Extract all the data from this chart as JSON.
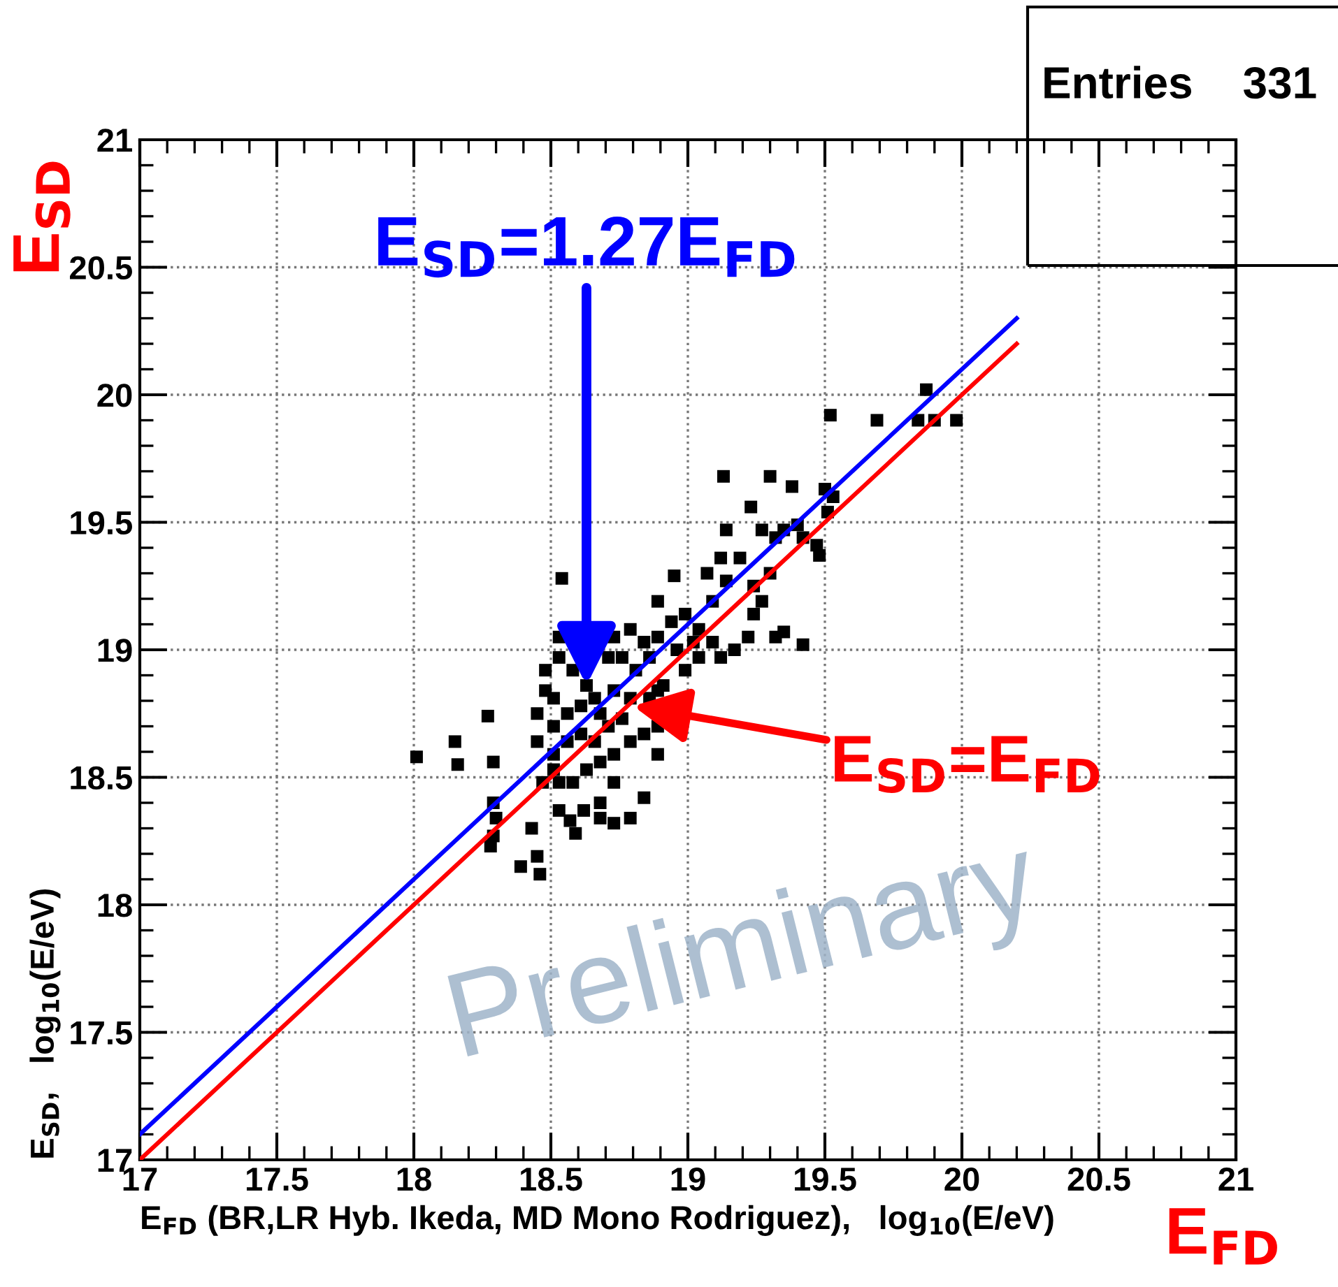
{
  "chart_data": {
    "type": "scatter",
    "xlabel": "E$_{FD}$ (BR,LR Hyb. Ikeda, MD Mono Rodriguez),   log$_{10}$(E/eV)",
    "ylabel": "E$_{SD}$,   log$_{10}$(E/eV)",
    "xlim": [
      17,
      21
    ],
    "ylim": [
      17,
      21
    ],
    "xticks": [
      17,
      17.5,
      18,
      18.5,
      19,
      19.5,
      20,
      20.5,
      21
    ],
    "yticks": [
      17,
      17.5,
      18,
      18.5,
      19,
      19.5,
      20,
      20.5,
      21
    ],
    "grid": true,
    "legend": false,
    "series": [
      {
        "color": "#000000",
        "marker": "square",
        "x": [
          18.01,
          18.15,
          18.16,
          18.27,
          18.29,
          18.29,
          18.29,
          18.3,
          18.28,
          18.54,
          18.46,
          18.39,
          18.43,
          18.45,
          18.57,
          18.59,
          18.53,
          18.47,
          18.68,
          18.68,
          18.73,
          18.79,
          18.84,
          18.89,
          18.84,
          18.89,
          18.89,
          18.86,
          18.89,
          18.94,
          18.99,
          19.04,
          19.09,
          19.14,
          19.19,
          19.24,
          19.3,
          19.27,
          19.32,
          19.35,
          19.4,
          19.42,
          19.47,
          19.14,
          19.12,
          19.07,
          19.02,
          19.09,
          19.12,
          19.17,
          19.24,
          19.27,
          19.22,
          19.32,
          19.35,
          19.42,
          19.48,
          19.5,
          19.53,
          19.13,
          19.3,
          19.23,
          19.38,
          19.52,
          19.69,
          19.84,
          19.9,
          19.98,
          19.87,
          19.51,
          18.53,
          18.58,
          18.63,
          18.48,
          18.51,
          18.45,
          18.51,
          18.56,
          18.61,
          18.66,
          18.68,
          18.73,
          18.79,
          18.81,
          18.76,
          18.71,
          18.53,
          18.48,
          18.45,
          18.51,
          18.56,
          18.61,
          18.66,
          18.71,
          18.76,
          18.68,
          18.63,
          18.58,
          18.53,
          18.51,
          18.73,
          18.79,
          18.73,
          18.62,
          18.86,
          18.91,
          18.99,
          19.04,
          18.96,
          18.84,
          18.73,
          18.79,
          18.95,
          18.89
        ],
        "values": [
          18.58,
          18.64,
          18.55,
          18.74,
          18.56,
          18.4,
          18.27,
          18.34,
          18.23,
          19.28,
          18.12,
          18.15,
          18.3,
          18.19,
          18.33,
          18.28,
          18.37,
          18.48,
          18.4,
          18.34,
          18.32,
          18.34,
          18.42,
          18.59,
          18.67,
          18.7,
          18.84,
          18.97,
          19.05,
          19.11,
          19.14,
          19.08,
          19.19,
          19.27,
          19.36,
          19.25,
          19.3,
          19.47,
          19.44,
          19.47,
          19.49,
          19.44,
          19.41,
          19.47,
          19.36,
          19.3,
          19.03,
          19.03,
          18.97,
          19.0,
          19.14,
          19.19,
          19.05,
          19.05,
          19.07,
          19.02,
          19.37,
          19.63,
          19.6,
          19.68,
          19.68,
          19.56,
          19.64,
          19.92,
          19.9,
          19.9,
          19.9,
          19.9,
          20.02,
          19.54,
          18.97,
          18.92,
          18.86,
          18.92,
          18.81,
          18.75,
          18.7,
          18.75,
          18.78,
          18.81,
          18.75,
          18.84,
          18.81,
          18.92,
          18.97,
          18.97,
          19.05,
          18.84,
          18.64,
          18.59,
          18.64,
          18.67,
          18.64,
          18.7,
          18.73,
          18.56,
          18.53,
          18.48,
          18.48,
          18.53,
          18.59,
          18.64,
          18.48,
          18.37,
          18.81,
          18.86,
          18.92,
          18.97,
          19.0,
          19.03,
          19.05,
          19.08,
          19.29,
          19.19
        ]
      },
      {
        "type": "line",
        "color": "#0000ff",
        "x": [
          17,
          20.2
        ],
        "values": [
          17.1,
          20.3
        ]
      },
      {
        "type": "line",
        "color": "#ff0000",
        "x": [
          17,
          20.2
        ],
        "values": [
          17,
          20.2
        ]
      }
    ],
    "annotations": [
      {
        "text": "E$_{SD}$=1.27E$_{FD}$",
        "x": 18.63,
        "y": 18.86
      },
      "E$_{SD}$=E$_{FD}$",
      "E$_{SD}$",
      "E$_{FD}$",
      "Preliminary",
      "Entries    331"
    ]
  }
}
